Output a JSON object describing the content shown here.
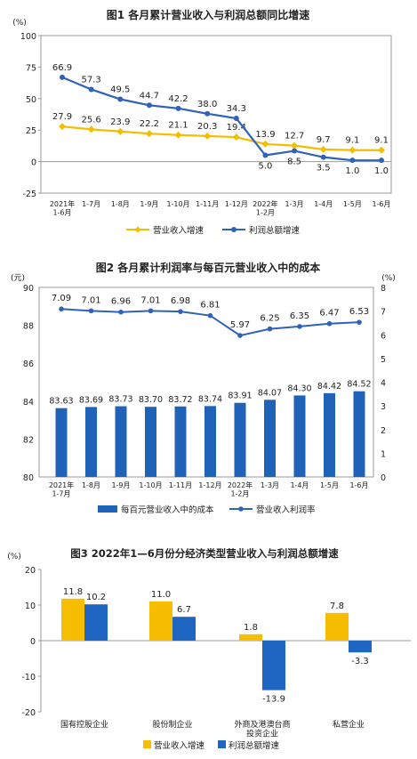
{
  "chart_data": [
    {
      "type": "line",
      "title": "图1  各月累计营业收入与利润总额同比增速",
      "y_unit": "(%)",
      "ylim": [
        -25,
        100
      ],
      "yticks": [
        "-25",
        "0",
        "25",
        "50",
        "75",
        "100"
      ],
      "categories": [
        "2021年 1-6月",
        "1-7月",
        "1-8月",
        "1-9月",
        "1-10月",
        "1-11月",
        "1-12月",
        "2022年 1-2月",
        "1-3月",
        "1-4月",
        "1-5月",
        "1-6月"
      ],
      "series": [
        {
          "name": "营业收入增速",
          "color": "#f5bd00",
          "values": [
            27.9,
            25.6,
            23.9,
            22.2,
            21.1,
            20.3,
            19.4,
            13.9,
            12.7,
            9.7,
            9.1,
            9.1
          ],
          "labels": [
            "27.9",
            "25.6",
            "23.9",
            "22.2",
            "21.1",
            "20.3",
            "19.4",
            "13.9",
            "12.7",
            "9.7",
            "9.1",
            "9.1"
          ]
        },
        {
          "name": "利润总额增速",
          "color": "#2f62b8",
          "values": [
            66.9,
            57.3,
            49.5,
            44.7,
            42.2,
            38.0,
            34.3,
            5.0,
            8.5,
            3.5,
            1.0,
            1.0
          ],
          "labels": [
            "66.9",
            "57.3",
            "49.5",
            "44.7",
            "42.2",
            "38.0",
            "34.3",
            "5.0",
            "8.5",
            "3.5",
            "1.0",
            "1.0"
          ]
        }
      ],
      "legend": "bottom"
    },
    {
      "type": "bar+line",
      "title": "图2  各月累计利润率与每百元营业收入中的成本",
      "y_left_unit": "(元)",
      "y_right_unit": "(%)",
      "ylim_left": [
        80,
        90
      ],
      "ylim_right": [
        0,
        8
      ],
      "yticks_left": [
        "80",
        "82",
        "84",
        "86",
        "88",
        "90"
      ],
      "yticks_right": [
        "0",
        "1",
        "2",
        "3",
        "4",
        "5",
        "6",
        "7",
        "8"
      ],
      "categories": [
        "2021年 1-7月",
        "1-8月",
        "1-9月",
        "1-10月",
        "1-11月",
        "1-12月",
        "2022年 1-2月",
        "1-3月",
        "1-4月",
        "1-5月",
        "1-6月"
      ],
      "bars": {
        "name": "每百元营业收入中的成本",
        "color": "#1f63b8",
        "values": [
          83.63,
          83.69,
          83.73,
          83.7,
          83.72,
          83.74,
          83.91,
          84.07,
          84.3,
          84.42,
          84.52
        ],
        "labels": [
          "83.63",
          "83.69",
          "83.73",
          "83.70",
          "83.72",
          "83.74",
          "83.91",
          "84.07",
          "84.30",
          "84.42",
          "84.52"
        ]
      },
      "line": {
        "name": "营业收入利润率",
        "color": "#2f62b8",
        "values": [
          7.09,
          7.01,
          6.96,
          7.01,
          6.98,
          6.81,
          5.97,
          6.25,
          6.35,
          6.47,
          6.53
        ],
        "labels": [
          "7.09",
          "7.01",
          "6.96",
          "7.01",
          "6.98",
          "6.81",
          "5.97",
          "6.25",
          "6.35",
          "6.47",
          "6.53"
        ]
      },
      "legend": "bottom"
    },
    {
      "type": "bar",
      "title": "图3  2022年1—6月份分经济类型营业收入与利润总额增速",
      "y_unit": "(%)",
      "ylim": [
        -20,
        20
      ],
      "yticks": [
        "-20",
        "-10",
        "0",
        "10",
        "20"
      ],
      "categories": [
        "国有控股企业",
        "股份制企业",
        "外商及港澳台商 投资企业",
        "私营企业"
      ],
      "series": [
        {
          "name": "营业收入增速",
          "color": "#f7bd00",
          "values": [
            11.8,
            11.0,
            1.8,
            7.8
          ],
          "labels": [
            "11.8",
            "11.0",
            "1.8",
            "7.8"
          ]
        },
        {
          "name": "利润总额增速",
          "color": "#1f66c2",
          "values": [
            10.2,
            6.7,
            -13.9,
            -3.3
          ],
          "labels": [
            "10.2",
            "6.7",
            "-13.9",
            "-3.3"
          ]
        }
      ],
      "legend": "bottom"
    }
  ]
}
